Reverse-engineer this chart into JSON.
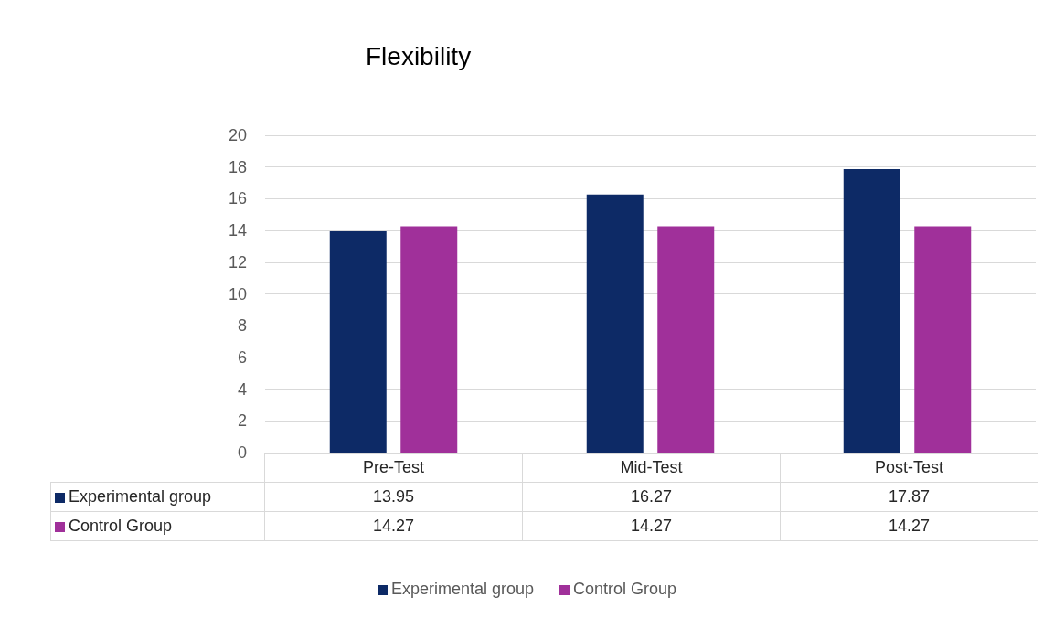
{
  "chart_data": {
    "type": "bar",
    "title": "Flexibility",
    "categories": [
      "Pre-Test",
      "Mid-Test",
      "Post-Test"
    ],
    "series": [
      {
        "name": "Experimental group",
        "color": "#0d2a66",
        "values": [
          13.95,
          16.27,
          17.87
        ]
      },
      {
        "name": "Control Group",
        "color": "#a0309a",
        "values": [
          14.27,
          14.27,
          14.27
        ]
      }
    ],
    "ylim": [
      0,
      20
    ],
    "yticks": [
      0,
      2,
      4,
      6,
      8,
      10,
      12,
      14,
      16,
      18,
      20
    ],
    "grid": "y",
    "legend": "bottom",
    "data_labels": true
  }
}
